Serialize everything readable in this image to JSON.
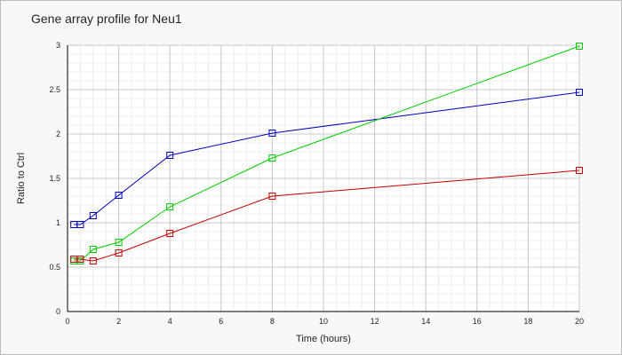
{
  "chart_data": {
    "type": "line",
    "title": "Gene array profile for Neu1",
    "xlabel": "Time (hours)",
    "ylabel": "Ratio to Ctrl",
    "xlim": [
      0,
      20
    ],
    "ylim": [
      0,
      3
    ],
    "x_ticks": [
      "0",
      "2",
      "4",
      "6",
      "8",
      "10",
      "12",
      "14",
      "16",
      "18",
      "20"
    ],
    "y_ticks": [
      "0",
      "0.5",
      "1",
      "1.5",
      "2",
      "2.5",
      "3"
    ],
    "grid": true,
    "legend": "none",
    "x": [
      0.25,
      0.5,
      1,
      2,
      4,
      8,
      20
    ],
    "series": [
      {
        "color": "#0000c0",
        "marker": "square",
        "values": [
          0.98,
          0.98,
          1.08,
          1.31,
          1.76,
          2.01,
          2.47
        ]
      },
      {
        "color": "#00cc00",
        "marker": "square",
        "values": [
          0.57,
          0.57,
          0.7,
          0.78,
          1.18,
          1.73,
          2.99
        ]
      },
      {
        "color": "#c00000",
        "marker": "square",
        "values": [
          0.59,
          0.59,
          0.57,
          0.66,
          0.88,
          1.3,
          1.59
        ]
      }
    ]
  }
}
